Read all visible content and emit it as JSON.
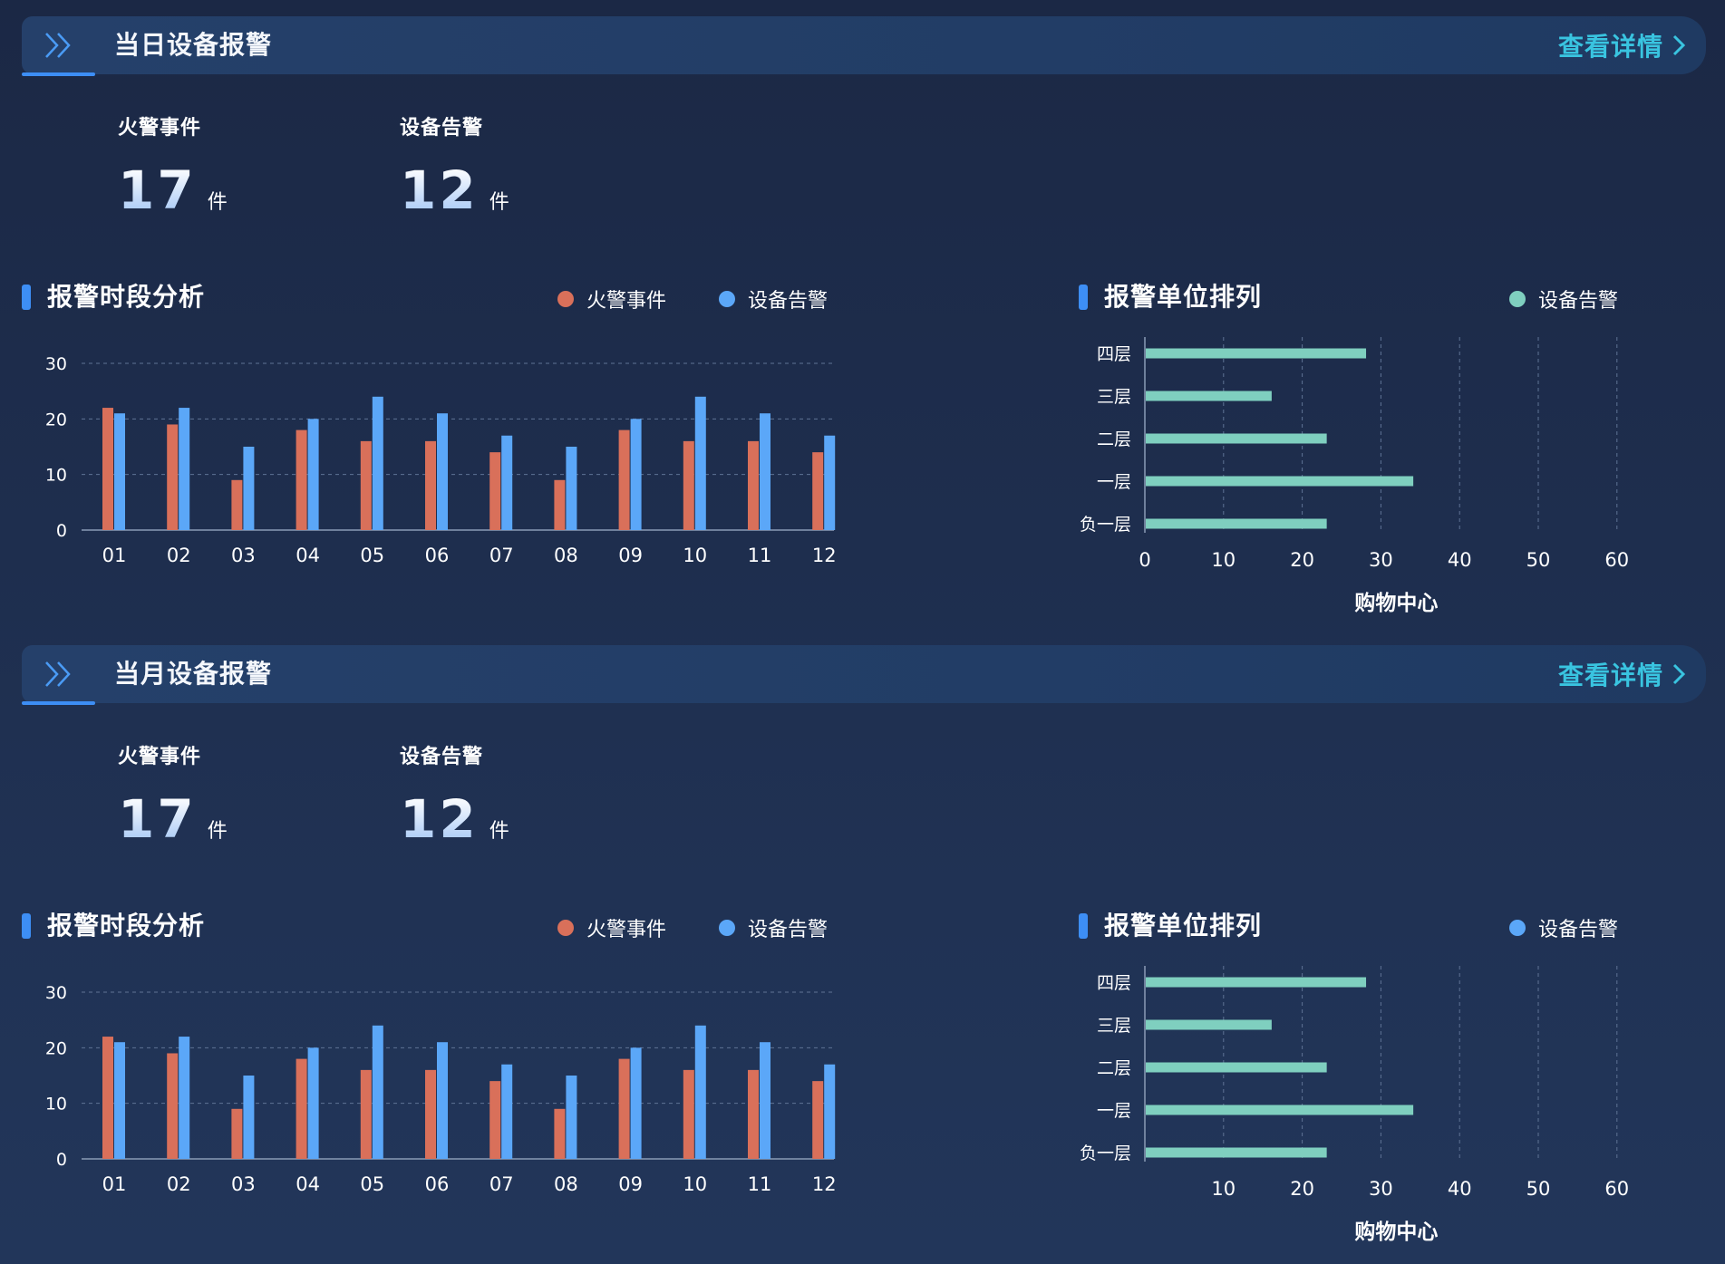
{
  "colors": {
    "fire": "#d9705a",
    "device": "#5ba7f8",
    "teal": "#7fcfbf",
    "accent_blue": "#3d8ef5",
    "link": "#39c4e0"
  },
  "sections": {
    "day": {
      "title": "当日设备报警",
      "details_label": "查看详情",
      "stats": {
        "fire": {
          "label": "火警事件",
          "value": "17",
          "unit": "件"
        },
        "device": {
          "label": "设备告警",
          "value": "12",
          "unit": "件"
        }
      },
      "period_title": "报警时段分析",
      "period_legend": {
        "fire": "火警事件",
        "device": "设备告警"
      },
      "unit_title": "报警单位排列",
      "unit_legend": {
        "device": "设备告警",
        "dot_color": "#7fcfbf"
      }
    },
    "month": {
      "title": "当月设备报警",
      "details_label": "查看详情",
      "stats": {
        "fire": {
          "label": "火警事件",
          "value": "17",
          "unit": "件"
        },
        "device": {
          "label": "设备告警",
          "value": "12",
          "unit": "件"
        }
      },
      "period_title": "报警时段分析",
      "period_legend": {
        "fire": "火警事件",
        "device": "设备告警"
      },
      "unit_title": "报警单位排列",
      "unit_legend": {
        "device": "设备告警",
        "dot_color": "#5ba7f8"
      }
    }
  },
  "chart_data": [
    {
      "type": "bar",
      "title": "报警时段分析",
      "categories": [
        "01",
        "02",
        "03",
        "04",
        "05",
        "06",
        "07",
        "08",
        "09",
        "10",
        "11",
        "12"
      ],
      "series": [
        {
          "name": "火警事件",
          "values": [
            22,
            19,
            9,
            18,
            16,
            16,
            14,
            9,
            18,
            16,
            16,
            14
          ]
        },
        {
          "name": "设备告警",
          "values": [
            21,
            22,
            15,
            20,
            24,
            21,
            17,
            15,
            20,
            24,
            21,
            17
          ]
        }
      ],
      "ylim": [
        0,
        30
      ],
      "yticks": [
        "0",
        "10",
        "20",
        "30"
      ],
      "grid": true,
      "legend": "top-right"
    },
    {
      "type": "bar",
      "orientation": "horizontal",
      "title": "报警单位排列",
      "categories": [
        "四层",
        "三层",
        "二层",
        "一层",
        "负一层"
      ],
      "series": [
        {
          "name": "设备告警",
          "values": [
            28,
            16,
            23,
            34,
            23
          ]
        }
      ],
      "xlabel": "购物中心",
      "xlim": [
        0,
        60
      ],
      "xticks": [
        "0",
        "10",
        "20",
        "30",
        "40",
        "50",
        "60"
      ],
      "grid": true,
      "legend": "top-right"
    },
    {
      "type": "bar",
      "title": "报警时段分析",
      "categories": [
        "01",
        "02",
        "03",
        "04",
        "05",
        "06",
        "07",
        "08",
        "09",
        "10",
        "11",
        "12"
      ],
      "series": [
        {
          "name": "火警事件",
          "values": [
            22,
            19,
            9,
            18,
            16,
            16,
            14,
            9,
            18,
            16,
            16,
            14
          ]
        },
        {
          "name": "设备告警",
          "values": [
            21,
            22,
            15,
            20,
            24,
            21,
            17,
            15,
            20,
            24,
            21,
            17
          ]
        }
      ],
      "ylim": [
        0,
        30
      ],
      "yticks": [
        "0",
        "10",
        "20",
        "30"
      ],
      "grid": true,
      "legend": "top-right"
    },
    {
      "type": "bar",
      "orientation": "horizontal",
      "title": "报警单位排列",
      "categories": [
        "四层",
        "三层",
        "二层",
        "一层",
        "负一层"
      ],
      "series": [
        {
          "name": "设备告警",
          "values": [
            28,
            16,
            23,
            34,
            23
          ]
        }
      ],
      "xlabel": "购物中心",
      "xlim": [
        0,
        60
      ],
      "xticks": [
        "10",
        "20",
        "30",
        "40",
        "50",
        "60"
      ],
      "grid": true,
      "legend": "top-right"
    }
  ]
}
